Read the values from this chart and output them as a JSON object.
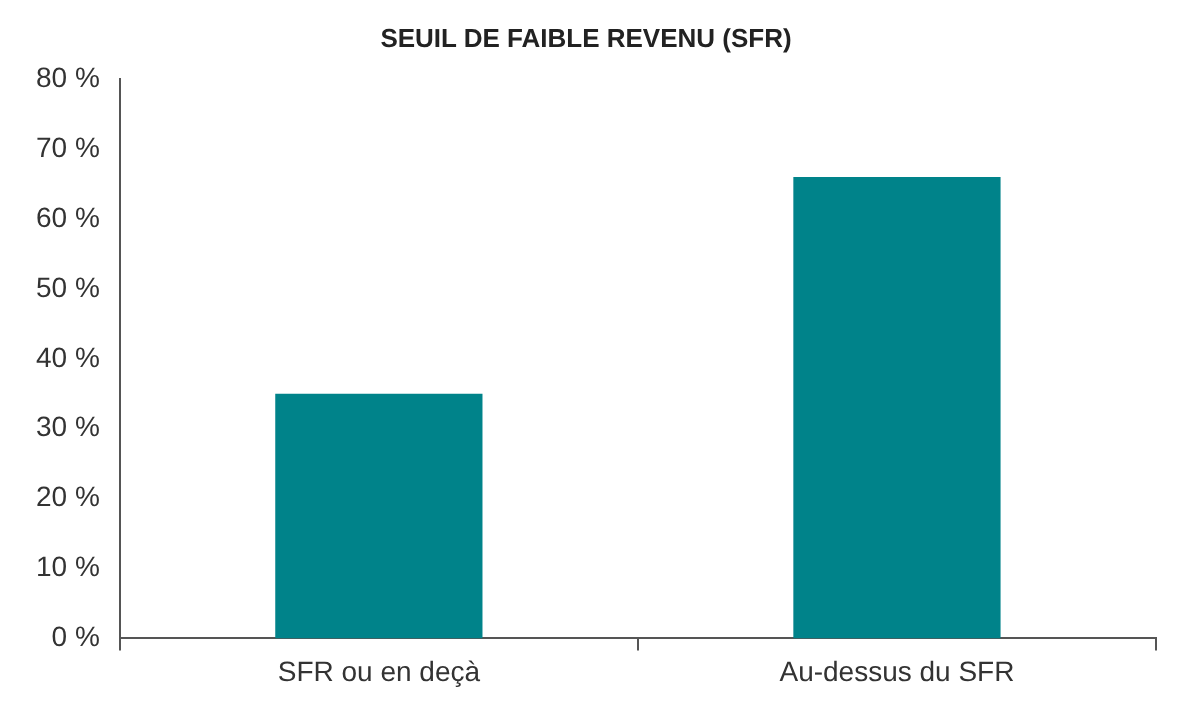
{
  "chart_data": {
    "type": "bar",
    "title": "SEUIL DE FAIBLE REVENU (SFR)",
    "categories": [
      "SFR ou en deçà",
      "Au-dessus du SFR"
    ],
    "values": [
      35,
      66
    ],
    "color": "#00838a",
    "ylim": [
      0,
      80
    ],
    "yticks": [
      {
        "value": 0,
        "label": "0 %"
      },
      {
        "value": 10,
        "label": "10 %"
      },
      {
        "value": 20,
        "label": "20 %"
      },
      {
        "value": 30,
        "label": "30 %"
      },
      {
        "value": 40,
        "label": "40 %"
      },
      {
        "value": 50,
        "label": "50 %"
      },
      {
        "value": 60,
        "label": "60 %"
      },
      {
        "value": 70,
        "label": "70 %"
      },
      {
        "value": 80,
        "label": "80 %"
      }
    ],
    "grid": false,
    "legend": false
  }
}
